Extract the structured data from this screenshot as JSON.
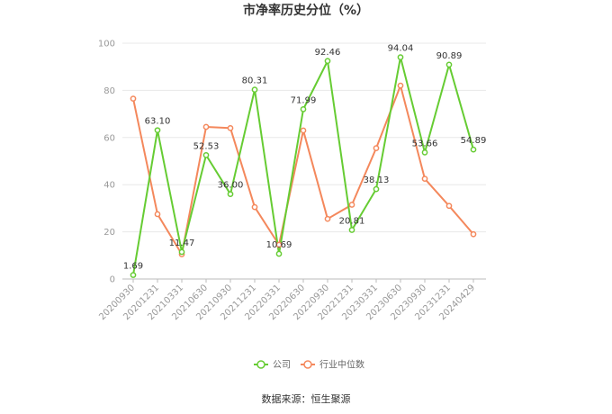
{
  "chart_data": {
    "type": "line",
    "title": "市净率历史分位（%）",
    "categories": [
      "20200930",
      "20201231",
      "20210331",
      "20210630",
      "20210930",
      "20211231",
      "20220331",
      "20220630",
      "20220930",
      "20221231",
      "20230331",
      "20230630",
      "20230930",
      "20231231",
      "20240429"
    ],
    "ylim": [
      0,
      100
    ],
    "yticks": [
      "0",
      "20",
      "40",
      "60",
      "80",
      "100"
    ],
    "grid": true,
    "legend_position": "bottom",
    "series": [
      {
        "name": "公司",
        "color": "#66cc33",
        "values": [
          1.69,
          63.1,
          11.47,
          52.53,
          36.0,
          80.31,
          10.69,
          71.99,
          92.46,
          20.81,
          38.13,
          94.04,
          53.66,
          90.89,
          54.89
        ],
        "labels": [
          "1.69",
          "63.10",
          "11.47",
          "52.53",
          "36.00",
          "80.31",
          "10.69",
          "71.99",
          "92.46",
          "20.81",
          "38.13",
          "94.04",
          "53.66",
          "90.89",
          "54.89"
        ]
      },
      {
        "name": "行业中位数",
        "color": "#f4885c",
        "values": [
          76.5,
          27.5,
          10.5,
          64.5,
          64.0,
          30.5,
          14.5,
          63.0,
          25.5,
          31.5,
          55.5,
          82.0,
          42.5,
          31.0,
          19.0
        ]
      }
    ],
    "source": "数据来源：恒生聚源"
  }
}
